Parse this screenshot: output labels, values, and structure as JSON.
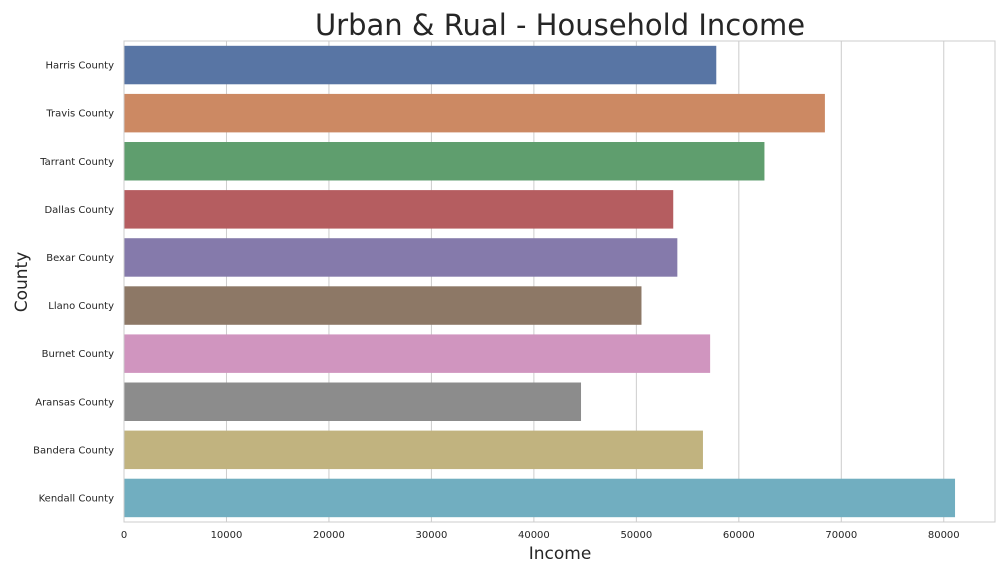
{
  "chart_data": {
    "type": "bar",
    "orientation": "horizontal",
    "title": "Urban & Rual - Household Income",
    "xlabel": "Income",
    "ylabel": "County",
    "categories": [
      "Harris County",
      "Travis County",
      "Tarrant County",
      "Dallas County",
      "Bexar County",
      "Llano County",
      "Burnet County",
      "Aransas County",
      "Bandera County",
      "Kendall County"
    ],
    "values": [
      57800,
      68400,
      62500,
      53600,
      54000,
      50500,
      57200,
      44600,
      56500,
      81100
    ],
    "colors": [
      "#5875a4",
      "#cc8963",
      "#5f9e6e",
      "#b55d60",
      "#857aab",
      "#8d7866",
      "#d095bf",
      "#8c8c8c",
      "#c1b37f",
      "#71aec0"
    ],
    "xlim": [
      0,
      85000
    ],
    "xticks": [
      0,
      10000,
      20000,
      30000,
      40000,
      50000,
      60000,
      70000,
      80000
    ],
    "xtick_labels": [
      "0",
      "10000",
      "20000",
      "30000",
      "40000",
      "50000",
      "60000",
      "70000",
      "80000"
    ],
    "grid": true
  }
}
